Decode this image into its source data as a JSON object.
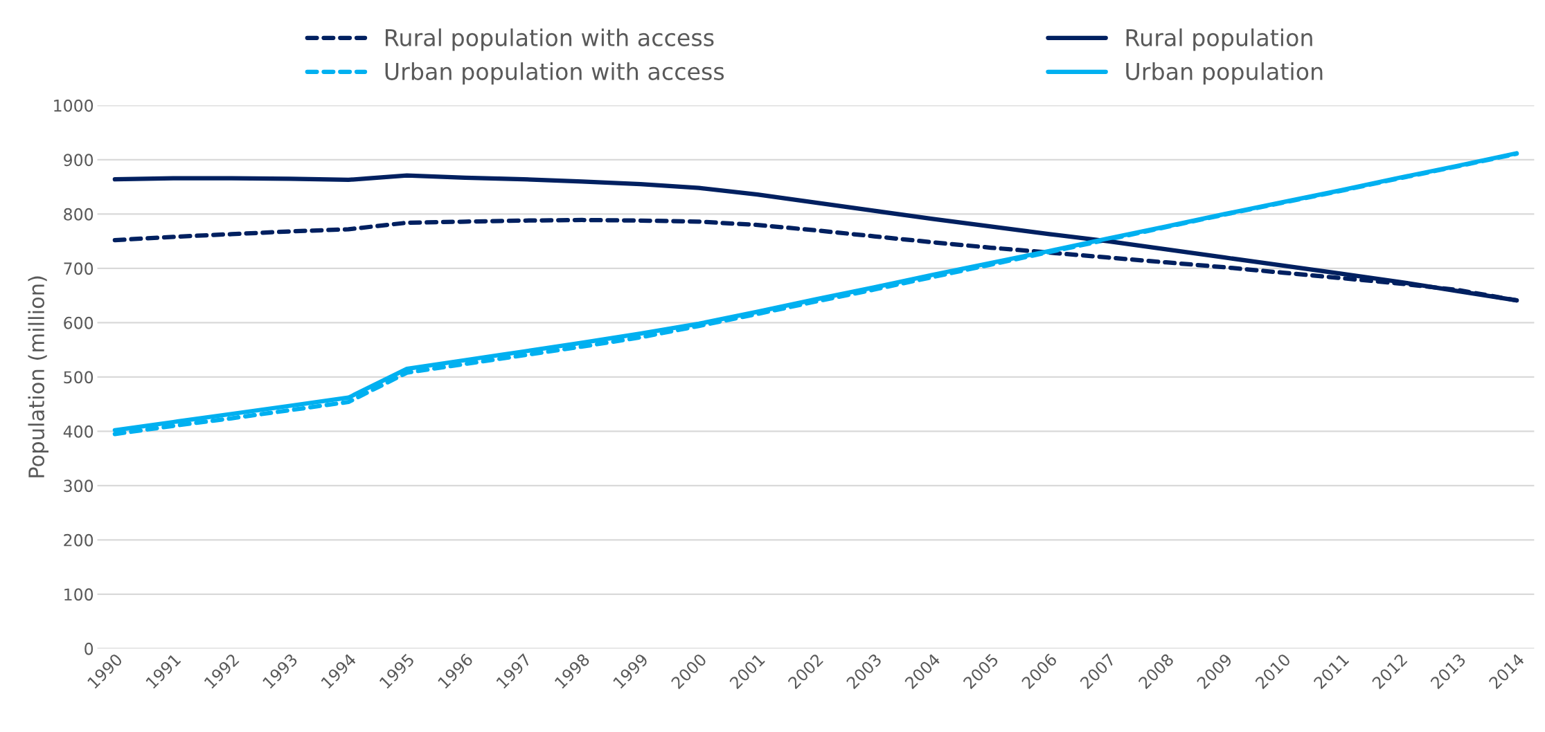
{
  "chart_data": {
    "type": "line",
    "ylabel": "Population (million)",
    "categories": [
      "1990",
      "1991",
      "1992",
      "1993",
      "1994",
      "1995",
      "1996",
      "1997",
      "1998",
      "1999",
      "2000",
      "2001",
      "2002",
      "2003",
      "2004",
      "2005",
      "2006",
      "2007",
      "2008",
      "2009",
      "2010",
      "2011",
      "2012",
      "2013",
      "2014"
    ],
    "series": [
      {
        "name": "Rural population with access",
        "color": "#002060",
        "line_style": "dashed",
        "values": [
          752,
          758,
          763,
          768,
          772,
          784,
          786,
          788,
          789,
          788,
          786,
          780,
          770,
          759,
          748,
          738,
          729,
          720,
          711,
          702,
          692,
          682,
          672,
          660,
          641
        ]
      },
      {
        "name": "Urban population with access",
        "color": "#00b0f0",
        "line_style": "dashed",
        "values": [
          395,
          410,
          424,
          439,
          454,
          508,
          524,
          540,
          556,
          573,
          594,
          616,
          639,
          661,
          684,
          707,
          730,
          753,
          776,
          799,
          821,
          843,
          866,
          888,
          911
        ]
      },
      {
        "name": "Rural population",
        "color": "#002060",
        "line_style": "solid",
        "values": [
          864,
          866,
          866,
          865,
          863,
          871,
          867,
          864,
          860,
          855,
          848,
          836,
          821,
          806,
          791,
          777,
          763,
          750,
          735,
          720,
          705,
          690,
          675,
          658,
          641
        ]
      },
      {
        "name": "Urban population",
        "color": "#00b0f0",
        "line_style": "solid",
        "values": [
          402,
          417,
          432,
          447,
          462,
          515,
          531,
          547,
          563,
          580,
          598,
          620,
          643,
          665,
          688,
          710,
          732,
          755,
          777,
          800,
          822,
          844,
          867,
          889,
          912
        ]
      }
    ],
    "ylim": [
      0,
      1000
    ],
    "yticks": [
      0,
      100,
      200,
      300,
      400,
      500,
      600,
      700,
      800,
      900,
      1000
    ],
    "grid": "y",
    "legend": "top",
    "marker": "none"
  }
}
